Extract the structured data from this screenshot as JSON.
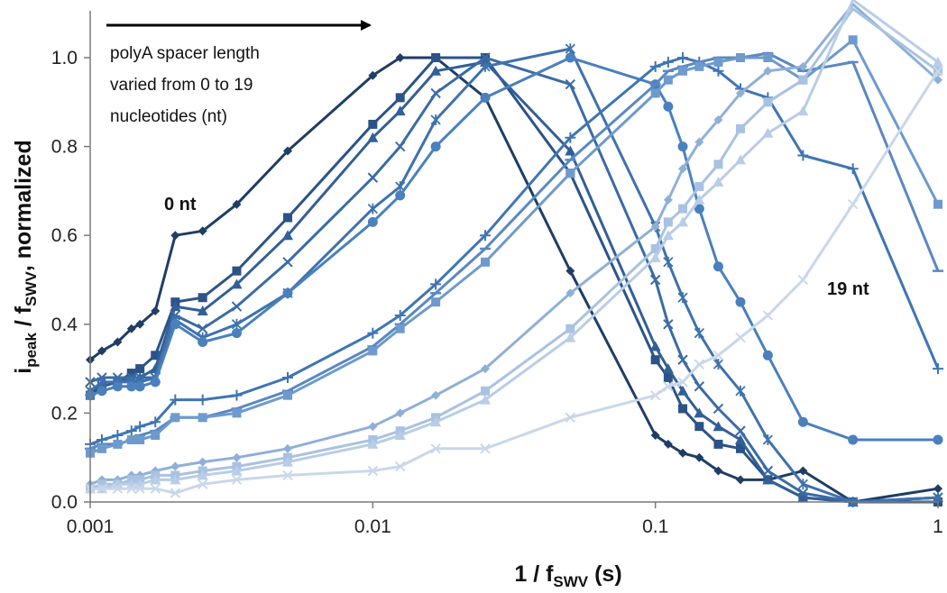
{
  "chart_data": {
    "type": "line",
    "x_scale": "log",
    "xlim": [
      0.001,
      1
    ],
    "ylim": [
      0,
      1.1
    ],
    "grid": false,
    "legend": "none",
    "x_ticks": [
      "0.001",
      "0.01",
      "0.1",
      "1"
    ],
    "y_ticks": [
      "0.0",
      "0.2",
      "0.4",
      "0.6",
      "0.8",
      "1.0"
    ],
    "xlabel": {
      "main": "1 / f",
      "sub": "SWV",
      "tail": " (s)"
    },
    "ylabel": {
      "i": "i",
      "isub": "peak",
      "mid": " / f",
      "fsub": "SWV",
      "tail": ", normalized"
    },
    "annotations": {
      "arrow_text": [
        "polyA spacer length",
        "varied from 0 to 19",
        "nucleotides (nt)"
      ],
      "label_first": "0 nt",
      "label_last": "19 nt"
    },
    "x": [
      0.001,
      0.0011,
      0.00125,
      0.0014,
      0.0015,
      0.0017,
      0.002,
      0.0025,
      0.0033,
      0.005,
      0.01,
      0.0125,
      0.0167,
      0.025,
      0.05,
      0.1,
      0.111,
      0.125,
      0.143,
      0.167,
      0.2,
      0.25,
      0.333,
      0.5,
      1.0
    ],
    "series": [
      {
        "marker": "diamond",
        "color": "#1f3d66",
        "values": [
          0.32,
          0.34,
          0.36,
          0.39,
          0.4,
          0.43,
          0.6,
          0.61,
          0.67,
          0.79,
          0.96,
          1.0,
          1.0,
          0.91,
          0.52,
          0.15,
          0.13,
          0.11,
          0.1,
          0.07,
          0.05,
          0.05,
          0.07,
          0.0,
          0.03
        ]
      },
      {
        "marker": "square",
        "color": "#2b5387",
        "values": [
          0.24,
          0.26,
          0.27,
          0.29,
          0.3,
          0.33,
          0.45,
          0.46,
          0.52,
          0.64,
          0.85,
          0.91,
          1.0,
          1.0,
          0.74,
          0.32,
          0.28,
          0.21,
          0.17,
          0.13,
          0.12,
          0.05,
          0.01,
          0.0,
          0.0
        ]
      },
      {
        "marker": "triangle",
        "color": "#335f97",
        "values": [
          0.25,
          0.26,
          0.27,
          0.28,
          0.28,
          0.3,
          0.44,
          0.43,
          0.49,
          0.6,
          0.82,
          0.88,
          0.97,
          0.99,
          0.79,
          0.35,
          0.3,
          0.25,
          0.2,
          0.17,
          0.14,
          0.05,
          0.01,
          0.0,
          0.01
        ]
      },
      {
        "marker": "x",
        "color": "#3a6ba5",
        "values": [
          0.27,
          0.28,
          0.28,
          0.28,
          0.28,
          0.28,
          0.42,
          0.39,
          0.44,
          0.54,
          0.73,
          0.8,
          0.92,
          1.0,
          0.94,
          0.5,
          0.4,
          0.32,
          0.26,
          0.21,
          0.16,
          0.07,
          0.02,
          0.0,
          0.01
        ]
      },
      {
        "marker": "asterisk",
        "color": "#3f72ad",
        "values": [
          0.25,
          0.27,
          0.27,
          0.27,
          0.27,
          0.28,
          0.41,
          0.37,
          0.4,
          0.47,
          0.66,
          0.71,
          0.86,
          0.98,
          1.02,
          0.62,
          0.54,
          0.46,
          0.38,
          0.31,
          0.25,
          0.14,
          0.04,
          0.0,
          0.01
        ]
      },
      {
        "marker": "circle",
        "color": "#4a80bd",
        "values": [
          0.24,
          0.25,
          0.26,
          0.26,
          0.26,
          0.27,
          0.4,
          0.36,
          0.38,
          0.47,
          0.63,
          0.69,
          0.8,
          0.91,
          1.0,
          0.94,
          0.89,
          0.8,
          0.66,
          0.53,
          0.45,
          0.33,
          0.18,
          0.14,
          0.14
        ]
      },
      {
        "marker": "plus",
        "color": "#3f75b4",
        "values": [
          0.13,
          0.14,
          0.15,
          0.16,
          0.17,
          0.18,
          0.23,
          0.23,
          0.24,
          0.28,
          0.38,
          0.42,
          0.49,
          0.6,
          0.82,
          0.98,
          0.99,
          1.0,
          0.99,
          0.97,
          0.93,
          0.91,
          0.78,
          0.75,
          0.3
        ]
      },
      {
        "marker": "dash",
        "color": "#5a88c2",
        "values": [
          0.12,
          0.13,
          0.13,
          0.14,
          0.15,
          0.16,
          0.19,
          0.19,
          0.21,
          0.25,
          0.35,
          0.4,
          0.47,
          0.57,
          0.77,
          0.94,
          0.97,
          0.98,
          0.99,
          1.0,
          1.0,
          1.01,
          0.97,
          0.99,
          0.52
        ]
      },
      {
        "marker": "square",
        "color": "#6e9acd",
        "values": [
          0.11,
          0.12,
          0.13,
          0.14,
          0.14,
          0.15,
          0.19,
          0.19,
          0.2,
          0.24,
          0.34,
          0.39,
          0.45,
          0.54,
          0.74,
          0.92,
          0.95,
          0.97,
          0.98,
          0.99,
          1.0,
          1.0,
          0.95,
          1.04,
          0.67
        ]
      },
      {
        "marker": "diamond",
        "color": "#8fb0d6",
        "values": [
          0.04,
          0.05,
          0.05,
          0.06,
          0.06,
          0.07,
          0.08,
          0.09,
          0.1,
          0.12,
          0.17,
          0.2,
          0.24,
          0.3,
          0.47,
          0.62,
          0.68,
          0.75,
          0.81,
          0.86,
          0.92,
          0.97,
          0.98,
          1.12,
          0.95
        ]
      },
      {
        "marker": "square",
        "color": "#a9c2e1",
        "values": [
          0.03,
          0.04,
          0.04,
          0.05,
          0.05,
          0.06,
          0.06,
          0.07,
          0.08,
          0.1,
          0.14,
          0.16,
          0.19,
          0.25,
          0.39,
          0.57,
          0.63,
          0.66,
          0.71,
          0.76,
          0.84,
          0.9,
          0.95,
          1.11,
          0.97
        ]
      },
      {
        "marker": "triangle",
        "color": "#b8cde6",
        "values": [
          0.03,
          0.03,
          0.04,
          0.04,
          0.04,
          0.05,
          0.05,
          0.06,
          0.07,
          0.09,
          0.13,
          0.15,
          0.18,
          0.23,
          0.37,
          0.55,
          0.6,
          0.63,
          0.68,
          0.72,
          0.77,
          0.83,
          0.88,
          1.13,
          0.99
        ]
      },
      {
        "marker": "x",
        "color": "#c9d7ea",
        "values": [
          0.03,
          0.03,
          0.03,
          0.03,
          0.03,
          0.03,
          0.02,
          0.04,
          0.05,
          0.06,
          0.07,
          0.08,
          0.12,
          0.12,
          0.19,
          0.24,
          0.26,
          0.27,
          0.31,
          0.33,
          0.37,
          0.42,
          0.5,
          0.67,
          0.97
        ]
      }
    ]
  }
}
